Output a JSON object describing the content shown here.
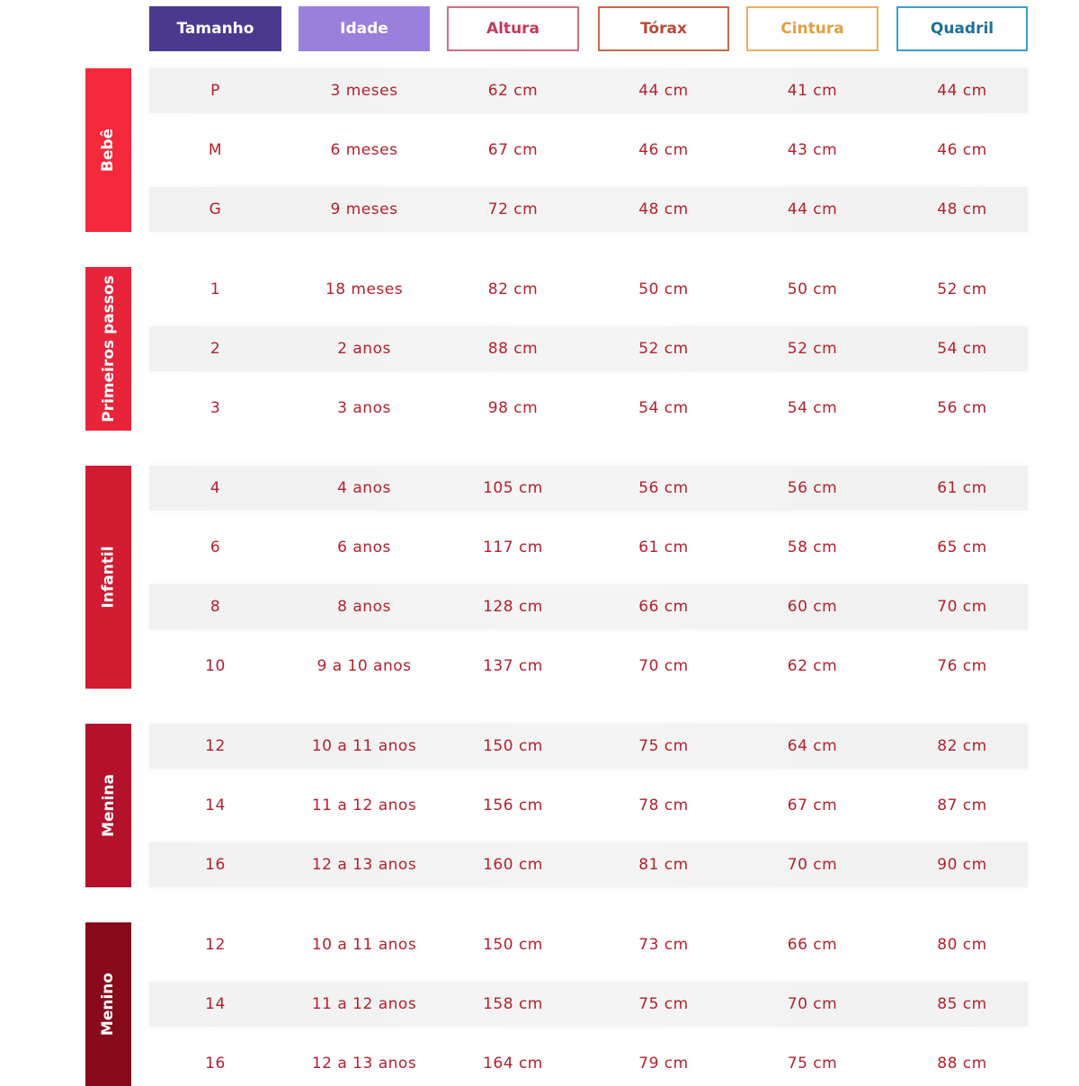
{
  "headers": [
    {
      "label": "Tamanho",
      "bg": "#4b3990",
      "fg": "#ffffff",
      "border": "#4b3990"
    },
    {
      "label": "Idade",
      "bg": "#9b7fdc",
      "fg": "#ffffff",
      "border": "#9b7fdc"
    },
    {
      "label": "Altura",
      "bg": "#ffffff",
      "fg": "#c23a5a",
      "border": "#d0707f"
    },
    {
      "label": "Tórax",
      "bg": "#ffffff",
      "fg": "#b84a35",
      "border": "#c8684a"
    },
    {
      "label": "Cintura",
      "bg": "#ffffff",
      "fg": "#e0a040",
      "border": "#e8b060"
    },
    {
      "label": "Quadril",
      "bg": "#ffffff",
      "fg": "#1f6f96",
      "border": "#3aa0c8"
    }
  ],
  "groups": [
    {
      "label": "Bebê",
      "color": "#f5283c",
      "rows": [
        [
          "P",
          "3 meses",
          "62 cm",
          "44 cm",
          "41 cm",
          "44 cm"
        ],
        [
          "M",
          "6 meses",
          "67 cm",
          "46 cm",
          "43 cm",
          "46 cm"
        ],
        [
          "G",
          "9 meses",
          "72 cm",
          "48 cm",
          "44 cm",
          "48 cm"
        ]
      ]
    },
    {
      "label": "Primeiros passos",
      "color": "#e8243a",
      "rows": [
        [
          "1",
          "18 meses",
          "82 cm",
          "50 cm",
          "50 cm",
          "52 cm"
        ],
        [
          "2",
          "2 anos",
          "88 cm",
          "52 cm",
          "52 cm",
          "54 cm"
        ],
        [
          "3",
          "3 anos",
          "98 cm",
          "54 cm",
          "54 cm",
          "56 cm"
        ]
      ]
    },
    {
      "label": "Infantil",
      "color": "#d21c32",
      "rows": [
        [
          "4",
          "4 anos",
          "105 cm",
          "56 cm",
          "56 cm",
          "61 cm"
        ],
        [
          "6",
          "6 anos",
          "117 cm",
          "61 cm",
          "58 cm",
          "65 cm"
        ],
        [
          "8",
          "8 anos",
          "128 cm",
          "66 cm",
          "60 cm",
          "70 cm"
        ],
        [
          "10",
          "9 a 10 anos",
          "137 cm",
          "70 cm",
          "62 cm",
          "76 cm"
        ]
      ]
    },
    {
      "label": "Menina",
      "color": "#b3122a",
      "rows": [
        [
          "12",
          "10 a 11 anos",
          "150 cm",
          "75 cm",
          "64 cm",
          "82 cm"
        ],
        [
          "14",
          "11 a 12 anos",
          "156 cm",
          "78 cm",
          "67 cm",
          "87 cm"
        ],
        [
          "16",
          "12 a 13 anos",
          "160 cm",
          "81 cm",
          "70 cm",
          "90 cm"
        ]
      ]
    },
    {
      "label": "Menino",
      "color": "#880b1c",
      "rows": [
        [
          "12",
          "10 a 11 anos",
          "150 cm",
          "73 cm",
          "66 cm",
          "80 cm"
        ],
        [
          "14",
          "11 a 12 anos",
          "158 cm",
          "75 cm",
          "70 cm",
          "85 cm"
        ],
        [
          "16",
          "12 a 13 anos",
          "164 cm",
          "79 cm",
          "75 cm",
          "88 cm"
        ]
      ]
    }
  ]
}
